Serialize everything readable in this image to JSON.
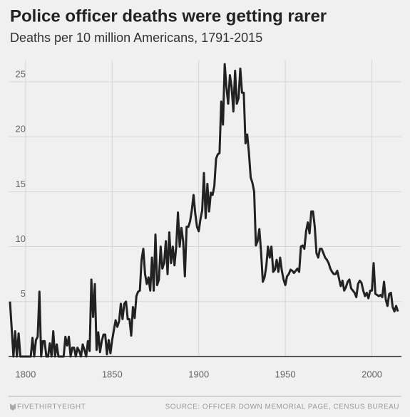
{
  "chart_data": {
    "type": "line",
    "title": "Police officer deaths were getting rarer",
    "subtitle": "Deaths per 10 million Americans, 1791-2015",
    "source": "SOURCE: OFFICER DOWN MEMORIAL PAGE, CENSUS BUREAU",
    "brand": "FIVETHIRTYEIGHT",
    "color": "#222222",
    "grid": true,
    "xlim": [
      1791,
      2015
    ],
    "xticks": [
      1800,
      1850,
      1900,
      1950,
      2000
    ],
    "ylim": [
      0,
      27
    ],
    "yticks": [
      5,
      10,
      15,
      20,
      25
    ],
    "x": [
      1791,
      1792,
      1793,
      1794,
      1795,
      1796,
      1797,
      1800,
      1803,
      1804,
      1805,
      1806,
      1807,
      1808,
      1809,
      1810,
      1811,
      1812,
      1813,
      1814,
      1815,
      1816,
      1817,
      1818,
      1819,
      1822,
      1823,
      1824,
      1825,
      1826,
      1827,
      1828,
      1829,
      1830,
      1831,
      1832,
      1833,
      1834,
      1835,
      1836,
      1837,
      1838,
      1839,
      1840,
      1841,
      1842,
      1843,
      1844,
      1845,
      1846,
      1847,
      1848,
      1849,
      1850,
      1851,
      1852,
      1853,
      1854,
      1855,
      1856,
      1857,
      1858,
      1859,
      1860,
      1861,
      1862,
      1863,
      1864,
      1865,
      1866,
      1867,
      1868,
      1869,
      1870,
      1871,
      1872,
      1873,
      1874,
      1875,
      1876,
      1877,
      1878,
      1879,
      1880,
      1881,
      1882,
      1883,
      1884,
      1885,
      1886,
      1887,
      1888,
      1889,
      1890,
      1891,
      1892,
      1893,
      1894,
      1895,
      1896,
      1897,
      1898,
      1899,
      1900,
      1901,
      1902,
      1903,
      1904,
      1905,
      1906,
      1907,
      1908,
      1909,
      1910,
      1911,
      1912,
      1913,
      1914,
      1915,
      1916,
      1917,
      1918,
      1919,
      1920,
      1921,
      1922,
      1923,
      1924,
      1925,
      1926,
      1927,
      1928,
      1929,
      1930,
      1931,
      1932,
      1933,
      1934,
      1935,
      1936,
      1937,
      1938,
      1939,
      1940,
      1941,
      1942,
      1943,
      1944,
      1945,
      1946,
      1947,
      1948,
      1949,
      1950,
      1951,
      1952,
      1953,
      1954,
      1955,
      1956,
      1957,
      1958,
      1959,
      1960,
      1961,
      1962,
      1963,
      1964,
      1965,
      1966,
      1967,
      1968,
      1969,
      1970,
      1971,
      1972,
      1973,
      1974,
      1975,
      1976,
      1977,
      1978,
      1979,
      1980,
      1981,
      1982,
      1983,
      1984,
      1985,
      1986,
      1987,
      1988,
      1989,
      1990,
      1991,
      1992,
      1993,
      1994,
      1995,
      1996,
      1997,
      1998,
      1999,
      2000,
      2001,
      2002,
      2003,
      2004,
      2005,
      2006,
      2007,
      2008,
      2009,
      2010,
      2011,
      2012,
      2013,
      2014,
      2015
    ],
    "values": [
      5,
      2.5,
      0,
      2.3,
      0,
      2.1,
      0,
      0,
      0,
      1.7,
      0,
      1.5,
      1.8,
      5.9,
      0,
      1.4,
      1.4,
      0,
      0,
      1.2,
      0,
      2.3,
      0,
      1.1,
      0,
      0,
      1.8,
      1,
      1.8,
      0,
      0.8,
      0.8,
      0,
      0.8,
      0.5,
      0,
      1.1,
      0.6,
      0,
      1.4,
      0.5,
      7,
      3.6,
      6.6,
      0.6,
      2.2,
      0.4,
      1.4,
      2,
      2,
      0.2,
      1.5,
      0.3,
      1.5,
      2.4,
      3.3,
      2.7,
      3.2,
      4.8,
      3.4,
      4.8,
      5,
      3.4,
      3.4,
      1.9,
      4.5,
      3.5,
      5.5,
      5.9,
      6,
      8.8,
      9.8,
      7.5,
      6.6,
      7.2,
      6,
      9,
      6,
      11.1,
      6.5,
      7,
      10,
      8,
      8.5,
      10.5,
      7.5,
      11.3,
      8.5,
      10,
      8.3,
      10,
      13.1,
      10,
      11.7,
      10.5,
      7.3,
      11.8,
      11.8,
      12.3,
      13.3,
      14.7,
      13,
      11.8,
      11.4,
      12.5,
      13.3,
      16.7,
      12.6,
      15.7,
      13.2,
      14.9,
      14.7,
      15.5,
      18,
      18.4,
      18.5,
      23.2,
      21.1,
      26.6,
      24.5,
      23,
      25.6,
      24.5,
      22.3,
      26,
      23,
      23.5,
      26.2,
      24,
      24,
      19.4,
      20.2,
      18.5,
      16.3,
      15.8,
      15,
      10.1,
      10.5,
      11.6,
      9.5,
      6.8,
      7.2,
      8.2,
      10,
      9,
      10,
      7.7,
      7.9,
      8.8,
      7.7,
      9,
      7.8,
      7,
      6.5,
      7.3,
      7.5,
      7.9,
      7.8,
      7.6,
      7.8,
      8,
      7.7,
      10,
      10.1,
      9.8,
      11.4,
      12.2,
      11.2,
      13.2,
      13.2,
      11.8,
      9.4,
      9,
      9.8,
      9.8,
      9.4,
      9,
      8.8,
      8.5,
      8,
      7.7,
      7.5,
      7.5,
      7.8,
      7.1,
      6.4,
      6.9,
      6,
      6.3,
      6.8,
      7,
      6.2,
      6,
      5.8,
      5.4,
      6.6,
      6.9,
      6.7,
      6,
      5.5,
      5.8,
      5.3,
      6,
      6,
      8.5,
      5.7,
      5.6,
      5.5,
      5.6,
      5.4,
      6.8,
      5.2,
      4.6,
      5.7,
      5.8,
      4.5,
      4.1,
      4.6,
      4.1
    ]
  }
}
